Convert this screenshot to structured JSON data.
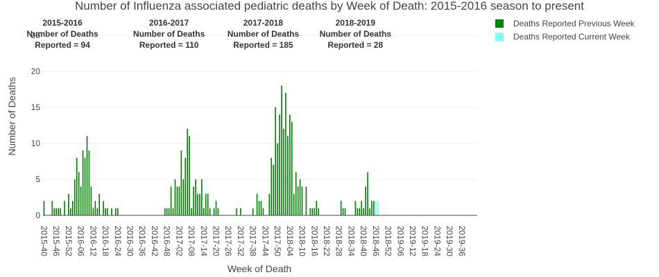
{
  "chart_data": {
    "type": "bar",
    "title": "Number of Influenza associated pediatric deaths by Week of Death: 2015-2016 season to present",
    "xlabel": "Week of Death",
    "ylabel": "Number of Deaths",
    "ylim": [
      0,
      27
    ],
    "y_ticks": [
      0,
      5,
      10,
      15,
      20,
      25
    ],
    "grid": true,
    "legend_position": "top-right",
    "tick_labels": [
      "2015-40",
      "2015-46",
      "2015-52",
      "2016-06",
      "2016-12",
      "2016-18",
      "2016-24",
      "2016-30",
      "2016-36",
      "2016-42",
      "2016-48",
      "2017-02",
      "2017-08",
      "2017-14",
      "2017-20",
      "2017-26",
      "2017-32",
      "2017-38",
      "2017-44",
      "2017-50",
      "2018-04",
      "2018-10",
      "2018-16",
      "2018-22",
      "2018-28",
      "2018-34",
      "2018-40",
      "2018-46",
      "2018-52",
      "2019-06",
      "2019-12",
      "2019-18",
      "2019-24",
      "2019-30",
      "2019-36"
    ],
    "season_annotations": [
      {
        "season": "2015-2016",
        "line1": "Number of Deaths",
        "line2": "Reported =  94",
        "center_week": 9
      },
      {
        "season": "2016-2017",
        "line1": "Number of Deaths",
        "line2": "Reported =  110",
        "center_week": 61
      },
      {
        "season": "2017-2018",
        "line1": "Number of Deaths",
        "line2": "Reported =  185",
        "center_week": 107
      },
      {
        "season": "2018-2019",
        "line1": "Number of Deaths",
        "line2": "Reported =  28",
        "center_week": 152
      }
    ],
    "series": [
      {
        "name": "Deaths Reported Previous Week",
        "color": "#008000",
        "values": [
          2,
          0,
          0,
          0,
          2,
          1,
          1,
          1,
          1,
          0,
          2,
          0,
          3,
          1,
          2,
          5,
          8,
          6,
          4,
          9,
          8,
          11,
          9,
          4,
          1,
          2,
          1,
          3,
          0,
          2,
          1,
          1,
          0,
          1,
          0,
          1,
          1,
          0,
          0,
          0,
          0,
          0,
          0,
          0,
          0,
          0,
          0,
          0,
          0,
          0,
          0,
          0,
          0,
          0,
          0,
          0,
          0,
          0,
          0,
          1,
          1,
          1,
          4,
          1,
          5,
          4,
          4,
          9,
          5,
          8,
          12,
          11,
          1,
          4,
          5,
          3,
          3,
          5,
          1,
          3,
          3,
          1,
          0,
          1,
          2,
          1,
          0,
          0,
          0,
          0,
          0,
          0,
          0,
          0,
          1,
          0,
          1,
          0,
          0,
          0,
          0,
          0,
          1,
          0,
          3,
          2,
          2,
          1,
          0,
          0,
          3,
          8,
          7,
          15,
          10,
          14,
          18,
          12,
          17,
          11,
          14,
          13,
          3,
          6,
          4,
          5,
          4,
          0,
          4,
          0,
          1,
          1,
          1,
          2,
          1,
          0,
          0,
          0,
          0,
          0,
          0,
          0,
          0,
          0,
          0,
          2,
          1,
          1,
          0,
          0,
          0,
          0,
          2,
          1,
          1,
          2,
          1,
          4,
          6,
          1,
          2,
          2,
          0,
          0,
          0,
          0,
          0,
          0,
          0,
          0,
          0,
          0,
          0,
          0,
          0,
          0,
          0,
          0,
          0,
          0,
          0,
          0,
          0,
          0,
          0,
          0,
          0,
          0,
          0,
          0,
          0,
          0,
          0,
          0,
          0,
          0,
          0,
          0,
          0,
          0,
          0,
          0,
          0,
          0,
          0,
          0,
          0,
          0,
          0,
          0,
          0,
          0
        ]
      },
      {
        "name": "Deaths Reported Current Week",
        "color": "#7fffff",
        "values": [
          0,
          0,
          0,
          0,
          0,
          0,
          0,
          0,
          0,
          0,
          0,
          0,
          0,
          0,
          0,
          0,
          0,
          0,
          0,
          0,
          0,
          0,
          0,
          0,
          0,
          0,
          0,
          0,
          0,
          0,
          0,
          0,
          0,
          0,
          0,
          0,
          0,
          0,
          0,
          0,
          0,
          0,
          0,
          0,
          0,
          0,
          0,
          0,
          0,
          0,
          0,
          0,
          0,
          0,
          0,
          0,
          0,
          0,
          0,
          0,
          0,
          0,
          0,
          0,
          0,
          0,
          0,
          0,
          0,
          0,
          0,
          0,
          0,
          0,
          0,
          0,
          0,
          0,
          0,
          0,
          0,
          0,
          0,
          0,
          0,
          0,
          0,
          0,
          0,
          0,
          0,
          0,
          0,
          0,
          0,
          0,
          0,
          0,
          0,
          0,
          0,
          0,
          0,
          0,
          0,
          0,
          0,
          0,
          0,
          0,
          0,
          0,
          0,
          0,
          0,
          0,
          0,
          0,
          0,
          0,
          0,
          0,
          0,
          0,
          0,
          0,
          0,
          0,
          0,
          0,
          0,
          0,
          0,
          0,
          0,
          0,
          0,
          0,
          0,
          0,
          0,
          0,
          0,
          0,
          0,
          0,
          0,
          0,
          0,
          0,
          0,
          0,
          0,
          0,
          0,
          0,
          0,
          0,
          0,
          0,
          0,
          0,
          2,
          2,
          0,
          0,
          0,
          0,
          0,
          0,
          0,
          0,
          0,
          0,
          0,
          0,
          0,
          0,
          0,
          0,
          0,
          0,
          0,
          0,
          0,
          0,
          0,
          0,
          0,
          0,
          0,
          0,
          0,
          0,
          0,
          0,
          0,
          0,
          0,
          0,
          0,
          0,
          0,
          0,
          0,
          0,
          0,
          0,
          0,
          0,
          0,
          0,
          0,
          0,
          0,
          0
        ]
      }
    ]
  }
}
